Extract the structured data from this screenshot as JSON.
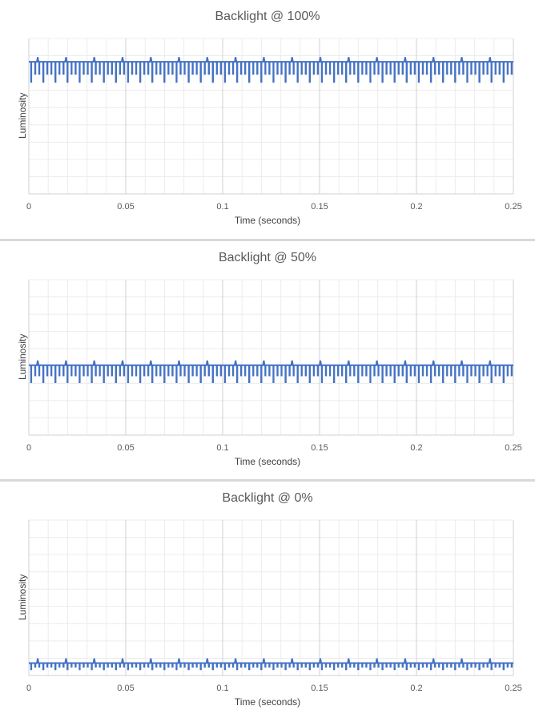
{
  "chart_data": [
    {
      "type": "line",
      "title": "Backlight @ 100%",
      "xlabel": "Time (seconds)",
      "ylabel": "Luminosity",
      "xlim": [
        0,
        0.25
      ],
      "x_ticks": [
        "0",
        "0.05",
        "0.1",
        "0.15",
        "0.2",
        "0.25"
      ],
      "ylim": [
        0,
        1
      ],
      "grid": true,
      "series": [
        {
          "baseline": 0.85,
          "pulse_count": 120,
          "dip_to": 0.72,
          "spike_to": 0.88,
          "color": "#4472c4"
        }
      ]
    },
    {
      "type": "line",
      "title": "Backlight @ 50%",
      "xlabel": "Time (seconds)",
      "ylabel": "Luminosity",
      "xlim": [
        0,
        0.25
      ],
      "x_ticks": [
        "0",
        "0.05",
        "0.1",
        "0.15",
        "0.2",
        "0.25"
      ],
      "ylim": [
        0,
        1
      ],
      "grid": true,
      "series": [
        {
          "baseline": 0.45,
          "pulse_count": 120,
          "dip_to": 0.34,
          "spike_to": 0.48,
          "color": "#4472c4"
        }
      ]
    },
    {
      "type": "line",
      "title": "Backlight @ 0%",
      "xlabel": "Time (seconds)",
      "ylabel": "Luminosity",
      "xlim": [
        0,
        0.25
      ],
      "x_ticks": [
        "0",
        "0.05",
        "0.1",
        "0.15",
        "0.2",
        "0.25"
      ],
      "ylim": [
        0,
        1
      ],
      "grid": true,
      "series": [
        {
          "baseline": 0.08,
          "pulse_count": 120,
          "dip_to": 0.04,
          "spike_to": 0.11,
          "color": "#4472c4"
        }
      ]
    }
  ]
}
